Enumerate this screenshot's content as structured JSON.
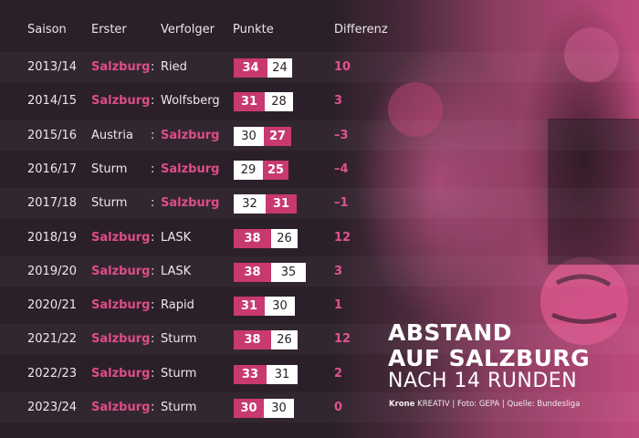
{
  "headers": {
    "season": "Saison",
    "first": "Erster",
    "pursuer": "Verfolger",
    "points": "Punkte",
    "difference": "Differenz"
  },
  "title": {
    "line1": "ABSTAND",
    "line2": "AUF SALZBURG",
    "line3": "NACH 14 RUNDEN"
  },
  "credits": {
    "brand": "Krone",
    "brand_suffix": "KREATIV",
    "photo": "Foto: GEPA",
    "source": "Quelle: Bundesliga"
  },
  "colors": {
    "accent": "#c8396f",
    "accent_text": "#de4d87",
    "background": "#2b2029"
  },
  "chart_data": {
    "type": "table",
    "title": "ABSTAND AUF SALZBURG NACH 14 RUNDEN",
    "columns": [
      "Saison",
      "Erster",
      "Verfolger",
      "Punkte",
      "Differenz"
    ],
    "rows": [
      {
        "season": "2013/14",
        "first": "Salzburg",
        "pursuer": "Ried",
        "first_points": 34,
        "pursuer_points": 24,
        "diff": "10",
        "salzburg": "first"
      },
      {
        "season": "2014/15",
        "first": "Salzburg",
        "pursuer": "Wolfsberg",
        "first_points": 31,
        "pursuer_points": 28,
        "diff": "3",
        "salzburg": "first"
      },
      {
        "season": "2015/16",
        "first": "Austria",
        "pursuer": "Salzburg",
        "first_points": 30,
        "pursuer_points": 27,
        "diff": "–3",
        "salzburg": "pursuer"
      },
      {
        "season": "2016/17",
        "first": "Sturm",
        "pursuer": "Salzburg",
        "first_points": 29,
        "pursuer_points": 25,
        "diff": "–4",
        "salzburg": "pursuer"
      },
      {
        "season": "2017/18",
        "first": "Sturm",
        "pursuer": "Salzburg",
        "first_points": 32,
        "pursuer_points": 31,
        "diff": "–1",
        "salzburg": "pursuer"
      },
      {
        "season": "2018/19",
        "first": "Salzburg",
        "pursuer": "LASK",
        "first_points": 38,
        "pursuer_points": 26,
        "diff": "12",
        "salzburg": "first"
      },
      {
        "season": "2019/20",
        "first": "Salzburg",
        "pursuer": "LASK",
        "first_points": 38,
        "pursuer_points": 35,
        "diff": "3",
        "salzburg": "first"
      },
      {
        "season": "2020/21",
        "first": "Salzburg",
        "pursuer": "Rapid",
        "first_points": 31,
        "pursuer_points": 30,
        "diff": "1",
        "salzburg": "first"
      },
      {
        "season": "2021/22",
        "first": "Salzburg",
        "pursuer": "Sturm",
        "first_points": 38,
        "pursuer_points": 26,
        "diff": "12",
        "salzburg": "first"
      },
      {
        "season": "2022/23",
        "first": "Salzburg",
        "pursuer": "Sturm",
        "first_points": 33,
        "pursuer_points": 31,
        "diff": "2",
        "salzburg": "first"
      },
      {
        "season": "2023/24",
        "first": "Salzburg",
        "pursuer": "Sturm",
        "first_points": 30,
        "pursuer_points": 30,
        "diff": "0",
        "salzburg": "first"
      }
    ]
  }
}
